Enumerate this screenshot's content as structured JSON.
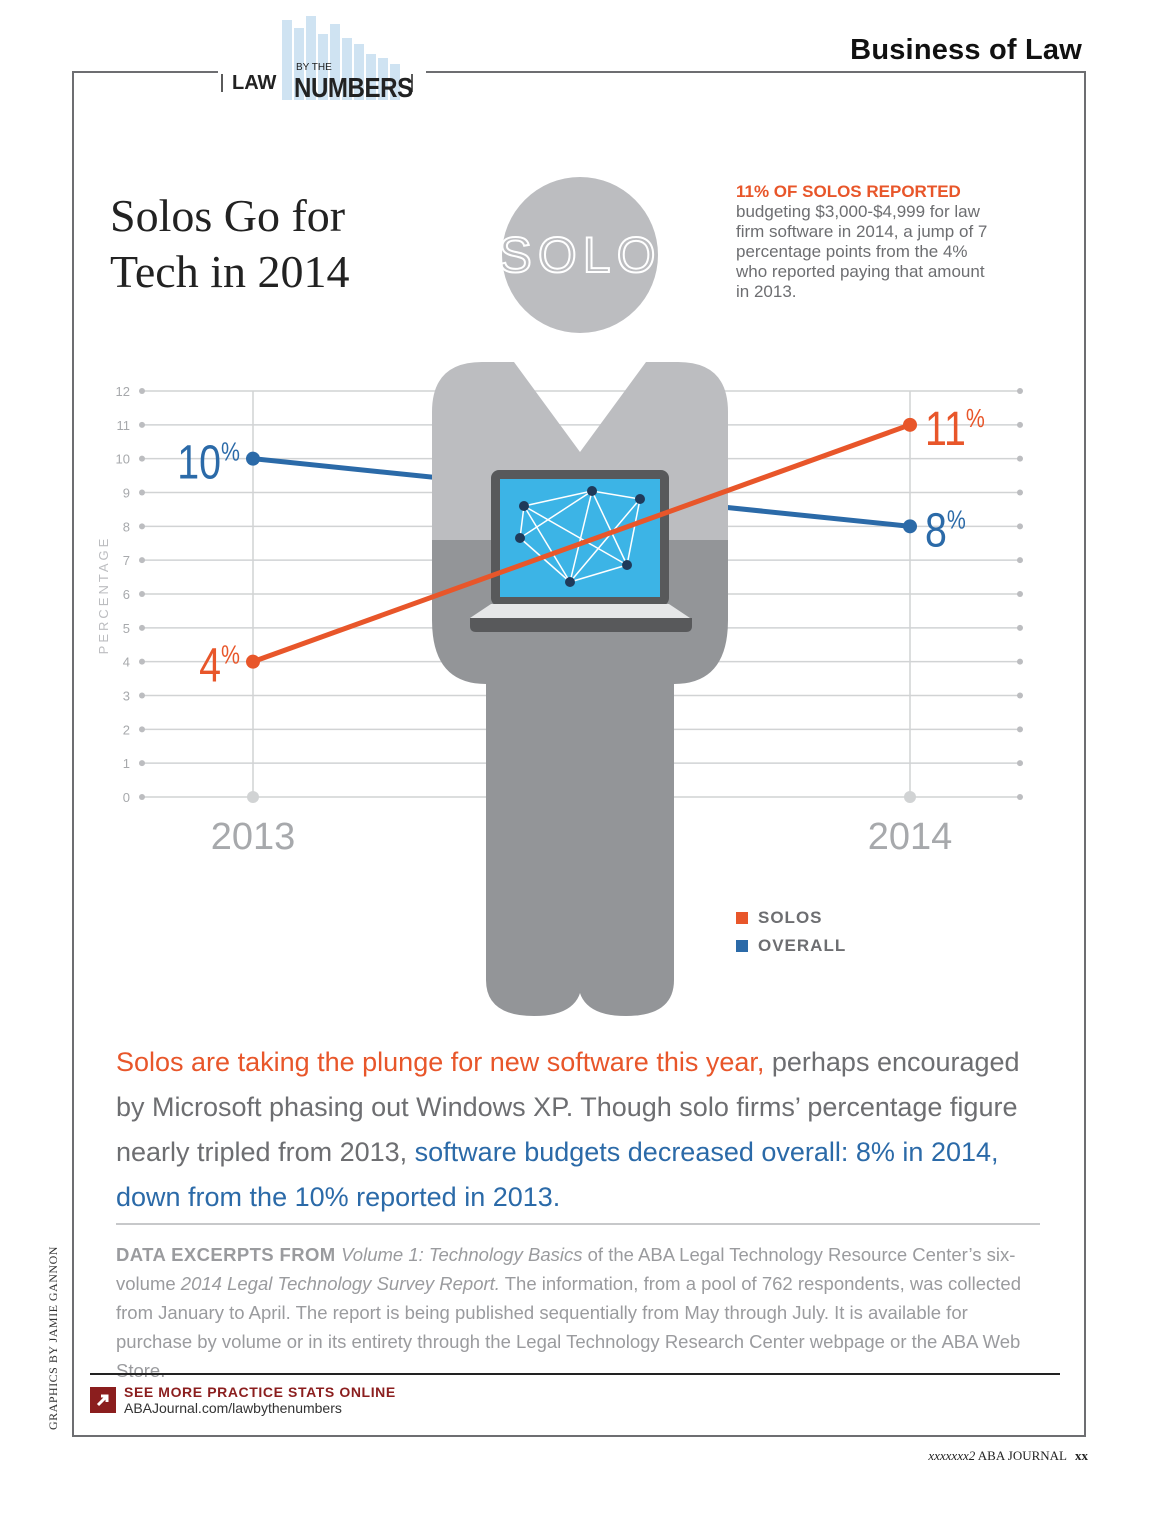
{
  "header": {
    "section": "Business of Law",
    "logo": {
      "law": "LAW",
      "by_the": "BY THE",
      "numbers": "NUMBERS"
    }
  },
  "headline": {
    "line1": "Solos Go for",
    "line2": "Tech in 2014"
  },
  "figure_head_text": "SOLO",
  "note": {
    "lead": "11% OF SOLOS REPORTED",
    "text": "budgeting $3,000-$4,999 for law firm software in 2014, a jump of 7 percentage points from the 4% who reported paying that amount in 2013."
  },
  "chart_data": {
    "type": "line",
    "categories": [
      "2013",
      "2014"
    ],
    "ylabel": "PERCENTAGE",
    "ylim": [
      0,
      12
    ],
    "yticks": [
      "0",
      "1",
      "2",
      "3",
      "4",
      "5",
      "6",
      "7",
      "8",
      "9",
      "10",
      "11",
      "12"
    ],
    "grid": true,
    "legend_position": "bottom-right",
    "series": [
      {
        "name": "SOLOS",
        "color": "#e8562a",
        "values": [
          4,
          11
        ],
        "labels": [
          "4%",
          "11%"
        ]
      },
      {
        "name": "OVERALL",
        "color": "#2b6aa8",
        "values": [
          10,
          8
        ],
        "labels": [
          "10%",
          "8%"
        ]
      }
    ]
  },
  "body": {
    "orange": "Solos are taking the plunge for new software this year,",
    "gray": " perhaps encouraged by Microsoft phasing out Windows XP. Though solo firms’ percentage figure nearly tripled from 2013, ",
    "blue": "software budgets decreased overall: 8% in 2014, down from the 10% reported in 2013."
  },
  "excerpt": {
    "lead": "DATA EXCERPTS FROM ",
    "vol": "Volume 1: Technology Basics",
    "mid1": " of the ABA Legal Technology Resource Center’s six-volume ",
    "report": "2014 Legal Technology Survey Report.",
    "rest": " The information, from a pool of 762 respondents, was collected from January to April. The report is being published sequentially from May through July. It is available for purchase by volume or in its entirety through the Legal Technology Research Center webpage or the ABA Web Store."
  },
  "credit": "GRAPHICS BY JAMIE GANNON",
  "cta": {
    "title": "SEE MORE PRACTICE STATS ONLINE",
    "url": "ABAJournal.com/lawbythenumbers"
  },
  "footer": {
    "issue": "xxxxxxx2",
    "journal": "ABA JOURNAL",
    "page": "xx"
  },
  "colors": {
    "solos": "#e8562a",
    "overall": "#2b6aa8",
    "figure_light": "#bcbdc0",
    "figure_dark": "#939598"
  }
}
